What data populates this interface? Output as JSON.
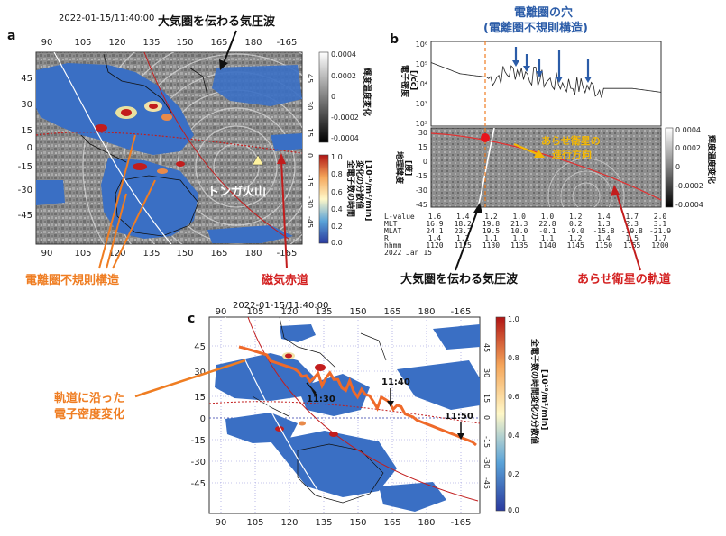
{
  "panel_a": {
    "label": "a",
    "timestamp": "2022-01-15/11:40:00",
    "lon_ticks": [
      "90",
      "105",
      "120",
      "135",
      "150",
      "165",
      "180",
      "-165"
    ],
    "lat_ticks": [
      "45",
      "30",
      "15",
      "0",
      "-15",
      "-30",
      "-45"
    ],
    "gray_cbar_ticks": [
      "0.0004",
      "0.0002",
      "0",
      "-0.0002",
      "-0.0004"
    ],
    "gray_cbar_label": "輝度温度変化",
    "color_cbar_ticks": [
      "1.0",
      "0.8",
      "0.6",
      "0.4",
      "0.2",
      "0.0"
    ],
    "color_cbar_label_1": "全電子数の時間",
    "color_cbar_label_2": "変化の分散値",
    "color_cbar_label_3": "[10¹⁶/m²/min]",
    "volcano_label": "トンガ火山",
    "right_lat_ticks": [
      "45",
      "30",
      "15",
      "0",
      "-15",
      "-30",
      "-45"
    ]
  },
  "panel_b": {
    "label": "b",
    "title_1": "電離圏の穴",
    "title_2": "(電離圏不規則構造)",
    "top_ylabel_1": "電子密度",
    "top_ylabel_2": "[/cc]",
    "top_yticks": [
      "10⁶",
      "10⁵",
      "10⁴",
      "10³",
      "10²"
    ],
    "bot_ylabel_1": "地理緯度",
    "bot_ylabel_2": "[度]",
    "bot_yticks": [
      "30",
      "15",
      "0",
      "-15",
      "-30",
      "-45"
    ],
    "cbar_ticks": [
      "0.0004",
      "0.0002",
      "0",
      "-0.0002",
      "-0.0004"
    ],
    "cbar_label": "輝度温度変化",
    "arrow_label_1": "あらせ衛星の",
    "arrow_label_2": "進行方向",
    "row_headers": [
      "L-value",
      "MLT",
      "MLAT",
      "R",
      "hhmm"
    ],
    "table": [
      [
        "1.6",
        "16.9",
        "24.1",
        "1.4",
        "1120"
      ],
      [
        "1.4",
        "18.2",
        "23.7",
        "1.2",
        "1125"
      ],
      [
        "1.2",
        "19.8",
        "19.5",
        "1.1",
        "1130"
      ],
      [
        "1.0",
        "21.3",
        "10.0",
        "1.1",
        "1135"
      ],
      [
        "1.0",
        "22.8",
        "-0.1",
        "1.1",
        "1140"
      ],
      [
        "1.2",
        "0.2",
        "-9.0",
        "1.2",
        "1145"
      ],
      [
        "1.4",
        "1.3",
        "-15.8",
        "1.4",
        "1150"
      ],
      [
        "1.7",
        "2.3",
        "-19.8",
        "1.5",
        "1155"
      ],
      [
        "2.0",
        "3.1",
        "-21.9",
        "1.7",
        "1200"
      ]
    ],
    "date": "2022 Jan 15"
  },
  "panel_c": {
    "label": "c",
    "timestamp": "2022-01-15/11:40:00",
    "lon_ticks": [
      "90",
      "105",
      "120",
      "135",
      "150",
      "165",
      "180",
      "-165"
    ],
    "lat_ticks": [
      "45",
      "30",
      "15",
      "0",
      "-15",
      "-30",
      "-45"
    ],
    "right_lat_ticks": [
      "45",
      "30",
      "15",
      "0",
      "-15",
      "-30",
      "-45"
    ],
    "cbar_ticks": [
      "1.0",
      "0.8",
      "0.6",
      "0.4",
      "0.2",
      "0.0"
    ],
    "cbar_label": "全電子数の時間変化の分散値",
    "cbar_unit": "[10¹⁶/m²/min]",
    "time_labels": [
      "11:30",
      "11:40",
      "11:50"
    ]
  },
  "annotations": {
    "pressure_wave": "大気圏を伝わる気圧波",
    "pressure_wave_b": "大気圏を伝わる気圧波",
    "irregular": "電離圏不規則構造",
    "mag_equator": "磁気赤道",
    "arase_orbit": "あらせ衛星の軌道",
    "density_along_orbit_1": "軌道に沿った",
    "density_along_orbit_2": "電子密度変化"
  },
  "colors": {
    "red": "#d32020",
    "orange": "#ef7d22",
    "blue": "#2b5ca8",
    "yellow": "#f2b705",
    "map_blue": "#3a6fc4"
  },
  "chart_data": [
    {
      "type": "line",
      "panel": "b-top",
      "ylabel": "電子密度 [/cc]",
      "yscale": "log",
      "ylim": [
        100,
        1000000
      ],
      "x_time_hhmm": [
        "1120",
        "1125",
        "1130",
        "1135",
        "1140",
        "1145",
        "1150",
        "1155",
        "1200"
      ],
      "series": [
        {
          "values": [
            100000,
            30000,
            20000,
            50000,
            15000,
            9000,
            6000,
            6000,
            4000
          ]
        }
      ]
    },
    {
      "type": "heatmap",
      "panel": "a",
      "xlabel": "",
      "ylabel": "",
      "xlim": [
        85,
        200
      ],
      "ylim": [
        -55,
        55
      ]
    },
    {
      "type": "heatmap",
      "panel": "c",
      "xlabel": "",
      "ylabel": "",
      "xlim": [
        85,
        200
      ],
      "ylim": [
        -55,
        55
      ]
    }
  ]
}
